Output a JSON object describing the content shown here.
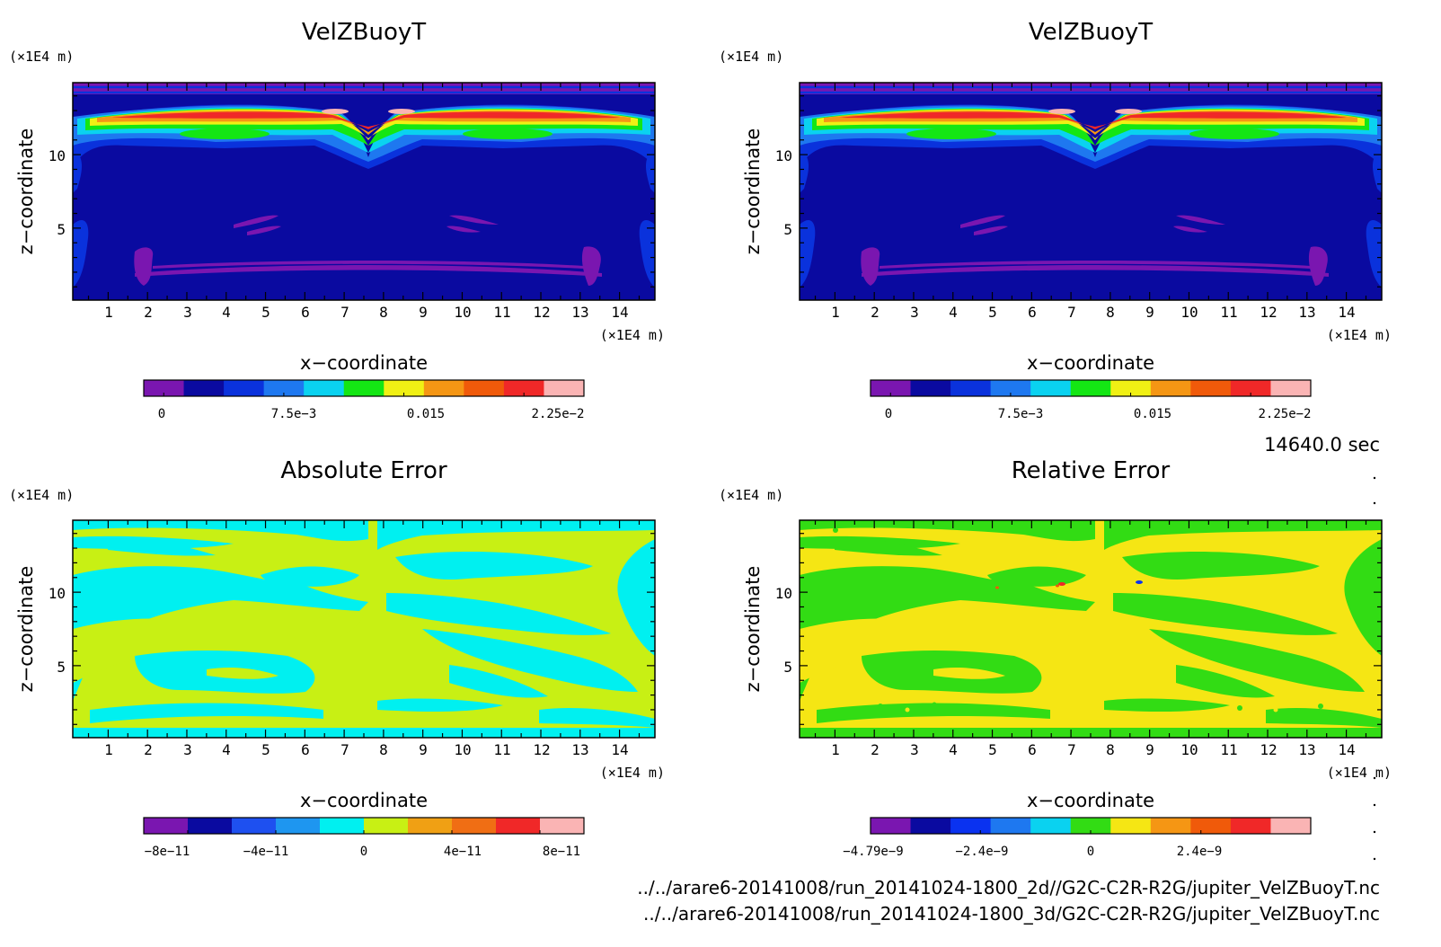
{
  "time_label": "14640.0 sec",
  "files": [
    "../../arare6-20141008/run_20141024-1800_2d//G2C-C2R-R2G/jupiter_VelZBuoyT.nc",
    "../../arare6-20141008/run_20141024-1800_3d/G2C-C2R-R2G/jupiter_VelZBuoyT.nc"
  ],
  "colors": {
    "velz": [
      "#7a16b0",
      "#0a0aa0",
      "#0a32dc",
      "#1e78f0",
      "#0ad2f0",
      "#14e614",
      "#f0f014",
      "#f59614",
      "#f05a0a",
      "#f02828",
      "#fab4b4"
    ],
    "abs": [
      "#7a16b0",
      "#0a0aa0",
      "#1e50f0",
      "#1e96f0",
      "#00f0f0",
      "#c8f014",
      "#f0a014",
      "#f06e14",
      "#f02828",
      "#fab4b4"
    ],
    "rel": [
      "#7a16b0",
      "#0a0aa0",
      "#0a32f0",
      "#1e78f0",
      "#0ad2f0",
      "#32dc14",
      "#f5e614",
      "#f59614",
      "#f05a0a",
      "#f02828",
      "#fab4b4"
    ]
  },
  "chart_data": [
    {
      "type": "heatmap",
      "title": "VelZBuoyT",
      "xlabel": "x−coordinate",
      "ylabel": "z−coordinate",
      "x_unit": "(×1E4 m)",
      "z_unit": "(×1E4 m)",
      "x_ticks": [
        "1",
        "2",
        "3",
        "4",
        "5",
        "6",
        "7",
        "8",
        "9",
        "10",
        "11",
        "12",
        "13",
        "14"
      ],
      "z_ticks": [
        "5",
        "10"
      ],
      "xlim": [
        0.1,
        14.9
      ],
      "zlim": [
        0.1,
        14.9
      ],
      "colorbar": {
        "ticks": [
          "0",
          "7.5e−3",
          "0.015",
          "2.25e−2"
        ],
        "tick_values": [
          0,
          0.0075,
          0.015,
          0.0225
        ],
        "range": [
          -0.00125,
          0.02625
        ],
        "levels": 11
      }
    },
    {
      "type": "heatmap",
      "title": "VelZBuoyT",
      "xlabel": "x−coordinate",
      "ylabel": "z−coordinate",
      "x_unit": "(×1E4 m)",
      "z_unit": "(×1E4 m)",
      "x_ticks": [
        "1",
        "2",
        "3",
        "4",
        "5",
        "6",
        "7",
        "8",
        "9",
        "10",
        "11",
        "12",
        "13",
        "14"
      ],
      "z_ticks": [
        "5",
        "10"
      ],
      "xlim": [
        0.1,
        14.9
      ],
      "zlim": [
        0.1,
        14.9
      ],
      "colorbar": {
        "ticks": [
          "0",
          "7.5e−3",
          "0.015",
          "2.25e−2"
        ],
        "tick_values": [
          0,
          0.0075,
          0.015,
          0.0225
        ],
        "range": [
          -0.00125,
          0.02625
        ],
        "levels": 11
      }
    },
    {
      "type": "heatmap",
      "title": "Absolute Error",
      "xlabel": "x−coordinate",
      "ylabel": "z−coordinate",
      "x_unit": "(×1E4 m)",
      "z_unit": "(×1E4 m)",
      "x_ticks": [
        "1",
        "2",
        "3",
        "4",
        "5",
        "6",
        "7",
        "8",
        "9",
        "10",
        "11",
        "12",
        "13",
        "14"
      ],
      "z_ticks": [
        "5",
        "10"
      ],
      "xlim": [
        0.1,
        14.9
      ],
      "zlim": [
        0.1,
        14.9
      ],
      "colorbar": {
        "ticks": [
          "−8e−11",
          "−4e−11",
          "0",
          "4e−11",
          "8e−11"
        ],
        "tick_values": [
          -8e-11,
          -4e-11,
          0,
          4e-11,
          8e-11
        ],
        "range": [
          -1e-10,
          1e-10
        ],
        "levels": 10
      }
    },
    {
      "type": "heatmap",
      "title": "Relative Error",
      "xlabel": "x−coordinate",
      "ylabel": "z−coordinate",
      "x_unit": "(×1E4 m)",
      "z_unit": "(×1E4 m)",
      "x_ticks": [
        "1",
        "2",
        "3",
        "4",
        "5",
        "6",
        "7",
        "8",
        "9",
        "10",
        "11",
        "12",
        "13",
        "14"
      ],
      "z_ticks": [
        "5",
        "10"
      ],
      "xlim": [
        0.1,
        14.9
      ],
      "zlim": [
        0.1,
        14.9
      ],
      "colorbar": {
        "ticks": [
          "−4.79e−9",
          "−2.4e−9",
          "0",
          "2.4e−9"
        ],
        "tick_values": [
          -4.79e-09,
          -2.4e-09,
          0,
          2.4e-09
        ],
        "range": [
          -4.79e-09,
          4.79e-09
        ],
        "levels": 11
      }
    }
  ]
}
